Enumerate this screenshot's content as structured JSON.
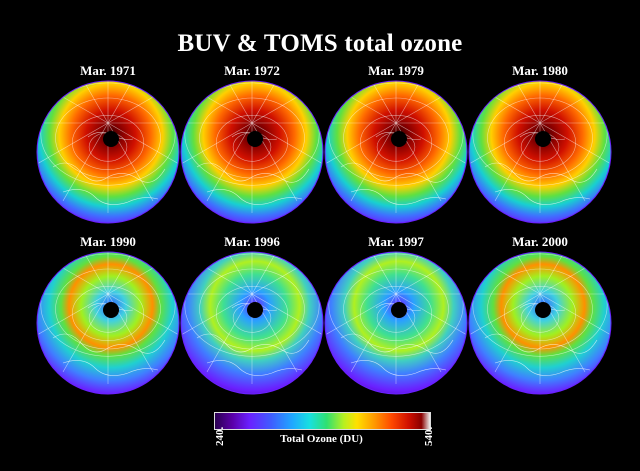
{
  "title": "BUV & TOMS total ozone",
  "panels": [
    {
      "label": "Mar. 1971",
      "max_intensity": 0.95,
      "hole": true
    },
    {
      "label": "Mar. 1972",
      "max_intensity": 0.97,
      "hole": true
    },
    {
      "label": "Mar. 1979",
      "max_intensity": 0.88,
      "hole": true
    },
    {
      "label": "Mar. 1980",
      "max_intensity": 0.92,
      "hole": true
    },
    {
      "label": "Mar. 1990",
      "max_intensity": 0.68,
      "hole": true
    },
    {
      "label": "Mar. 1996",
      "max_intensity": 0.55,
      "hole": true
    },
    {
      "label": "Mar. 1997",
      "max_intensity": 0.5,
      "hole": true
    },
    {
      "label": "Mar. 2000",
      "max_intensity": 0.66,
      "hole": true
    }
  ],
  "colorbar": {
    "label": "Total Ozone (DU)",
    "min": "240.",
    "max": "540.",
    "colors": [
      "#2a0050",
      "#5a00a8",
      "#6a20ff",
      "#3f5cff",
      "#1fa8ff",
      "#18e0e0",
      "#30e070",
      "#b8f020",
      "#ffe000",
      "#ff9a00",
      "#ff4a00",
      "#d01000",
      "#8a0000"
    ]
  }
}
